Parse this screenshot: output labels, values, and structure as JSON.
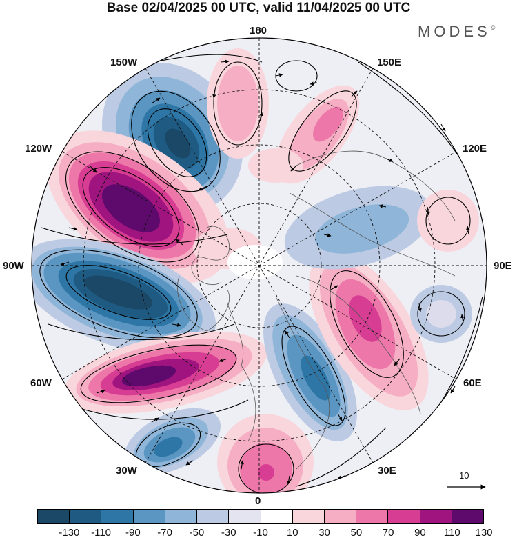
{
  "title": "Base 02/04/2025 00 UTC, valid 11/04/2025 00 UTC",
  "brand": {
    "name": "MODES",
    "mark": "©"
  },
  "longitude_labels": {
    "top": "180",
    "top_left": "150W",
    "top_right": "150E",
    "upper_left": "120W",
    "upper_right": "120E",
    "left": "90W",
    "right": "90E",
    "lower_left": "60W",
    "lower_right": "60E",
    "bottom_left": "30W",
    "bottom_right": "30E",
    "bottom": "0"
  },
  "reference_vector": {
    "label": "10"
  },
  "colorbar": {
    "colors": [
      "#1b4866",
      "#1e5a82",
      "#2e76a6",
      "#5b96c2",
      "#8fb5d8",
      "#bccbe3",
      "#e4e4f1",
      "#ffffff",
      "#f9d6dc",
      "#f5aec3",
      "#ec77a8",
      "#d73d92",
      "#a0147f",
      "#5e0a6c"
    ],
    "tick_labels": [
      "-130",
      "-110",
      "-90",
      "-70",
      "-50",
      "-30",
      "-10",
      "10",
      "30",
      "50",
      "70",
      "90",
      "110",
      "130"
    ]
  },
  "anomaly_field": [
    {
      "id": "A-northeast-pacific-low",
      "category": "negative",
      "lon_center": 145,
      "lat_center": 48,
      "level": -110
    },
    {
      "id": "B-north-america-high",
      "category": "positive",
      "lon_center": 113,
      "lat_center": 48,
      "level": 130
    },
    {
      "id": "C-canada-low",
      "category": "negative",
      "lon_center": 83,
      "lat_center": 43,
      "level": -130
    },
    {
      "id": "D-north-atlantic-high",
      "category": "positive",
      "lon_center": 54,
      "lat_center": 35,
      "level": 130
    },
    {
      "id": "E-atlantic-low",
      "category": "negative",
      "lon_center": 32,
      "lat_center": 22,
      "level": -70
    },
    {
      "id": "F-africa-high",
      "category": "positive",
      "lon_center": 0,
      "lat_center": 20,
      "level": 70
    },
    {
      "id": "G-europe-low",
      "category": "negative",
      "lon_center": 25,
      "lat_center": 50,
      "level": -70
    },
    {
      "id": "H-west-asia-high",
      "category": "positive",
      "lon_center": 70,
      "lat_center": 50,
      "level": 90
    },
    {
      "id": "I-siberia-low",
      "category": "negative",
      "lon_center": 118,
      "lat_center": 55,
      "level": -50
    },
    {
      "id": "J-east-asia-high",
      "category": "positive",
      "lon_center": 160,
      "lat_center": 50,
      "level": 70
    },
    {
      "id": "K-bering-high",
      "category": "positive",
      "lon_center": 170,
      "lat_center": 45,
      "level": 50
    }
  ]
}
